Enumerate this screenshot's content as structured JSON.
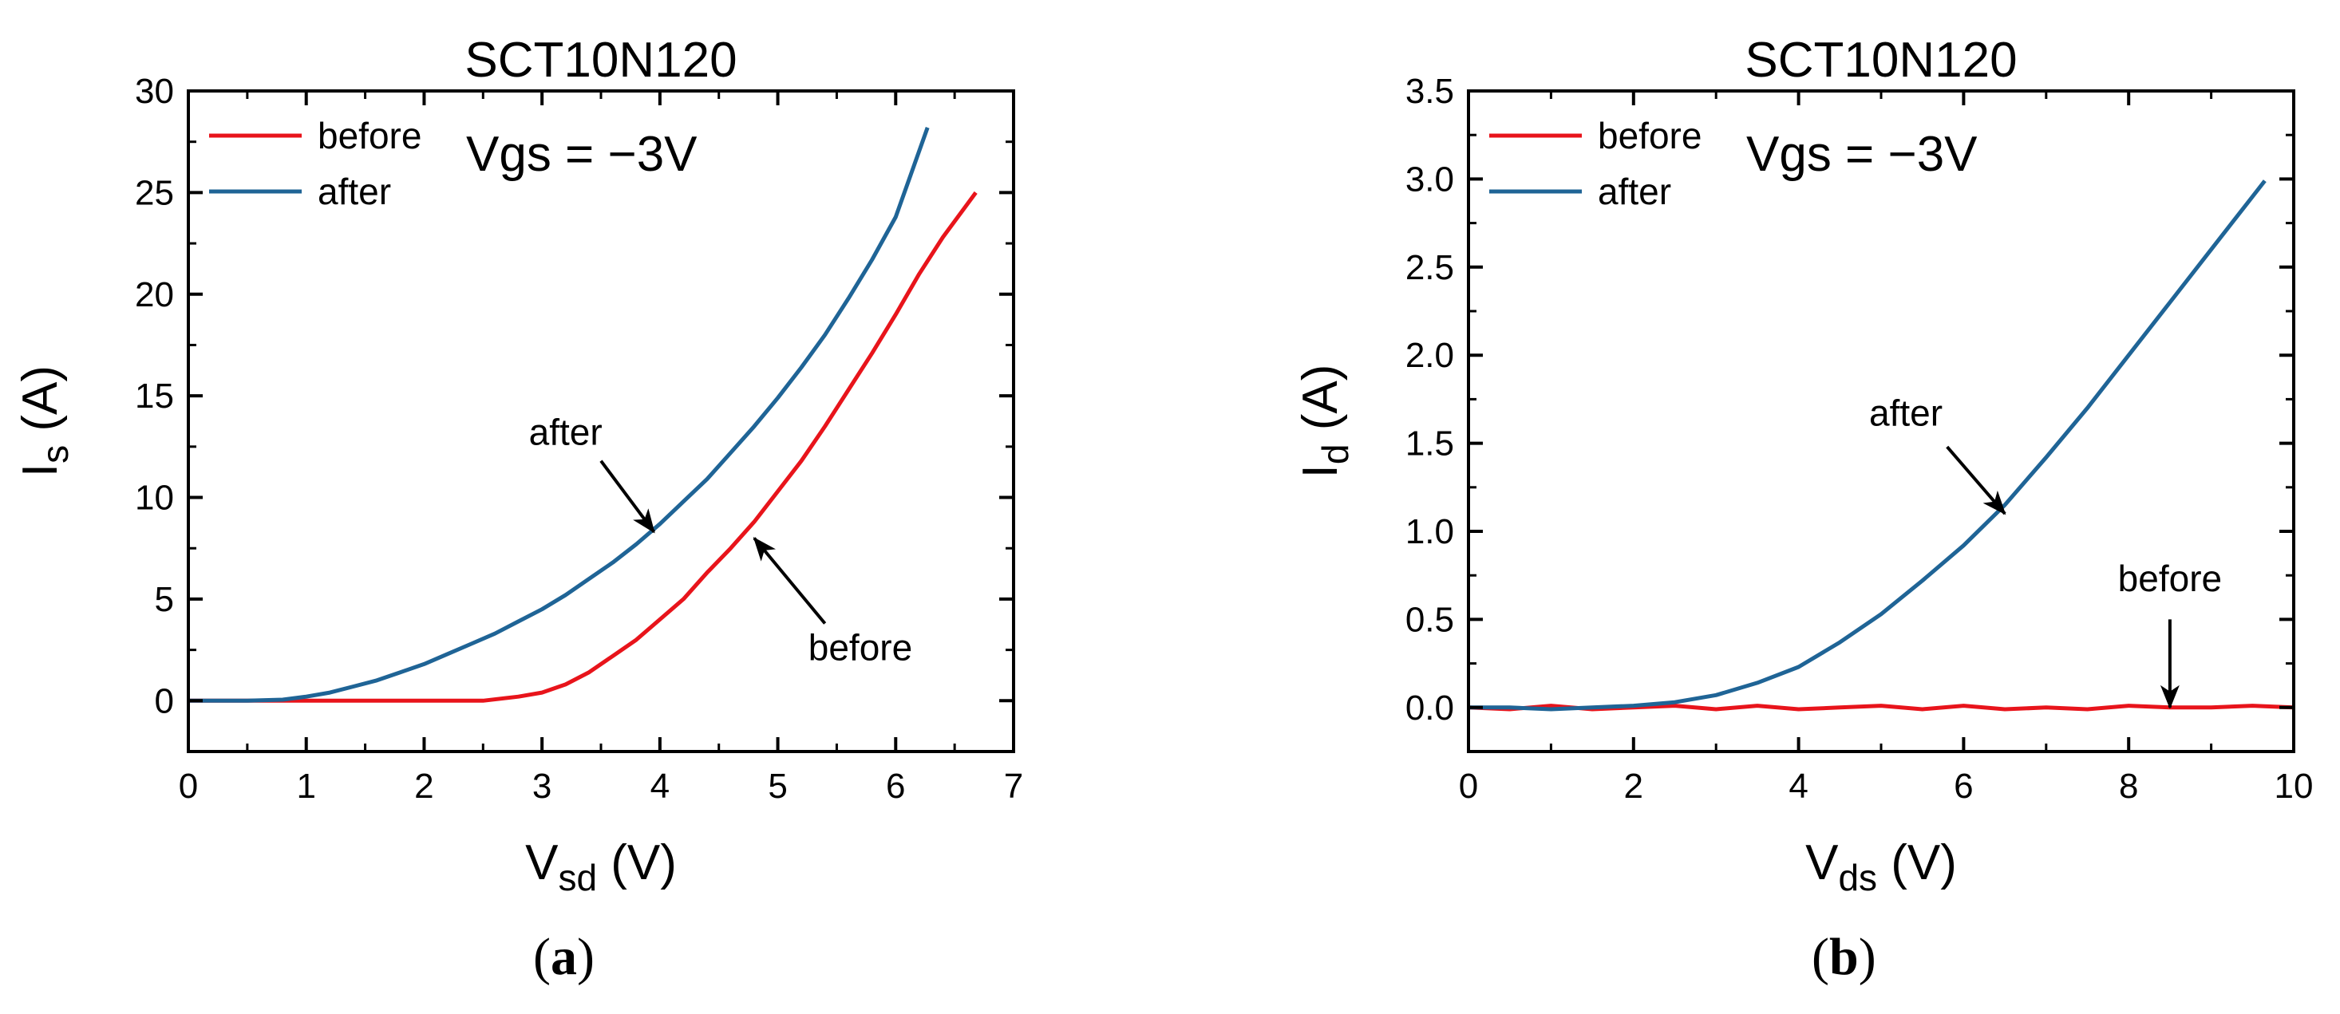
{
  "colors": {
    "before": "#e8141b",
    "after": "#1f6496",
    "axis": "#000000"
  },
  "chart_data": [
    {
      "type": "line",
      "panel_label": "a",
      "title": "SCT10N120",
      "xlabel_main": "V",
      "xlabel_sub": "sd",
      "xlabel_unit": "(V)",
      "ylabel_main": "I",
      "ylabel_sub": "s",
      "ylabel_unit": "(A)",
      "annotation": "Vgs = −3V",
      "xlim": [
        0,
        7
      ],
      "ylim": [
        -2.5,
        30
      ],
      "xticks": [
        0,
        1,
        2,
        3,
        4,
        5,
        6,
        7
      ],
      "yticks": [
        0,
        5,
        10,
        15,
        20,
        25,
        30
      ],
      "legend": [
        "before",
        "after"
      ],
      "series": [
        {
          "name": "before",
          "color_key": "before",
          "x": [
            0,
            0.5,
            1,
            1.5,
            2,
            2.5,
            2.8,
            3.0,
            3.2,
            3.4,
            3.6,
            3.8,
            4.0,
            4.2,
            4.4,
            4.6,
            4.8,
            5.0,
            5.2,
            5.4,
            5.6,
            5.8,
            6.0,
            6.2,
            6.4,
            6.68
          ],
          "y": [
            0,
            0,
            0,
            0,
            0,
            0,
            0.2,
            0.4,
            0.8,
            1.4,
            2.2,
            3.0,
            4.0,
            5.0,
            6.3,
            7.5,
            8.8,
            10.3,
            11.8,
            13.5,
            15.3,
            17.1,
            19.0,
            21.0,
            22.8,
            25.0
          ]
        },
        {
          "name": "after",
          "color_key": "after",
          "x": [
            0,
            0.5,
            0.8,
            1.0,
            1.2,
            1.4,
            1.6,
            1.8,
            2.0,
            2.2,
            2.4,
            2.6,
            2.8,
            3.0,
            3.2,
            3.4,
            3.6,
            3.8,
            4.0,
            4.2,
            4.4,
            4.6,
            4.8,
            5.0,
            5.2,
            5.4,
            5.6,
            5.8,
            6.0,
            6.27
          ],
          "y": [
            0,
            0,
            0.05,
            0.2,
            0.4,
            0.7,
            1.0,
            1.4,
            1.8,
            2.3,
            2.8,
            3.3,
            3.9,
            4.5,
            5.2,
            6.0,
            6.8,
            7.7,
            8.7,
            9.8,
            10.9,
            12.2,
            13.5,
            14.9,
            16.4,
            18.0,
            19.8,
            21.7,
            23.8,
            28.2
          ]
        }
      ],
      "arrows": [
        {
          "label": "after",
          "text_x": 3.2,
          "text_y": 12.6,
          "from_x": 3.5,
          "from_y": 11.8,
          "to_x": 3.95,
          "to_y": 8.3
        },
        {
          "label": "before",
          "text_x": 5.7,
          "text_y": 2.0,
          "from_x": 5.4,
          "from_y": 3.8,
          "to_x": 4.8,
          "to_y": 8.0
        }
      ]
    },
    {
      "type": "line",
      "panel_label": "b",
      "title": "SCT10N120",
      "xlabel_main": "V",
      "xlabel_sub": "ds",
      "xlabel_unit": "(V)",
      "ylabel_main": "I",
      "ylabel_sub": "d",
      "ylabel_unit": "(A)",
      "annotation": "Vgs = −3V",
      "xlim": [
        0,
        10
      ],
      "ylim": [
        -0.25,
        3.5
      ],
      "xticks": [
        0,
        2,
        4,
        6,
        8,
        10
      ],
      "yticks": [
        0.0,
        0.5,
        1.0,
        1.5,
        2.0,
        2.5,
        3.0,
        3.5
      ],
      "legend": [
        "before",
        "after"
      ],
      "series": [
        {
          "name": "before",
          "color_key": "before",
          "x": [
            0,
            0.5,
            1,
            1.5,
            2,
            2.5,
            3,
            3.5,
            4,
            4.5,
            5,
            5.5,
            6,
            6.5,
            7,
            7.5,
            8,
            8.5,
            9,
            9.5,
            10
          ],
          "y": [
            0,
            -0.01,
            0.01,
            -0.01,
            0.0,
            0.01,
            -0.01,
            0.01,
            -0.01,
            0.0,
            0.01,
            -0.01,
            0.01,
            -0.01,
            0.0,
            -0.01,
            0.01,
            0.0,
            0.0,
            0.01,
            0.0
          ]
        },
        {
          "name": "after",
          "color_key": "after",
          "x": [
            0,
            0.5,
            1.0,
            1.5,
            2.0,
            2.5,
            3.0,
            3.5,
            4.0,
            4.5,
            5.0,
            5.5,
            6.0,
            6.5,
            7.0,
            7.5,
            8.0,
            8.5,
            9.0,
            9.5,
            9.65
          ],
          "y": [
            0,
            0.0,
            -0.01,
            0.0,
            0.01,
            0.03,
            0.07,
            0.14,
            0.23,
            0.37,
            0.53,
            0.72,
            0.92,
            1.15,
            1.42,
            1.7,
            2.0,
            2.3,
            2.6,
            2.9,
            2.99
          ]
        }
      ],
      "arrows": [
        {
          "label": "after",
          "text_x": 5.3,
          "text_y": 1.6,
          "from_x": 5.8,
          "from_y": 1.48,
          "to_x": 6.5,
          "to_y": 1.1
        },
        {
          "label": "before",
          "text_x": 8.5,
          "text_y": 0.66,
          "from_x": 8.5,
          "from_y": 0.5,
          "to_x": 8.5,
          "to_y": 0.0
        }
      ]
    }
  ]
}
